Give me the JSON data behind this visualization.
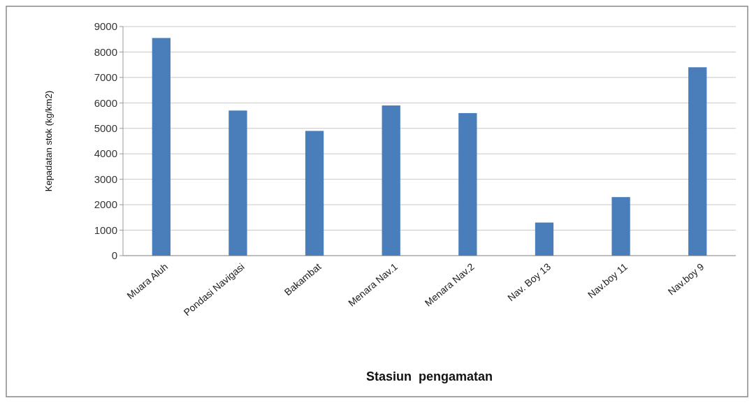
{
  "chart_data": {
    "type": "bar",
    "xlabel": "Stasiun  pengamatan",
    "ylabel": "Kepadatan stok  (kg/km2)",
    "categories": [
      "Muara Aluh",
      "Pondasi Navigasi",
      "Bakambat",
      "Menara Nav.1",
      "Menara Nav.2",
      "Nav. Boy 13",
      "Nav.boy 11",
      "Nav.boy 9"
    ],
    "values": [
      8550,
      5700,
      4900,
      5900,
      5600,
      1300,
      2300,
      7400
    ],
    "color": "#4a7ebb",
    "ylim": [
      0,
      9000
    ],
    "yticks": [
      0,
      1000,
      2000,
      3000,
      4000,
      5000,
      6000,
      7000,
      8000,
      9000
    ],
    "grid": "y"
  }
}
